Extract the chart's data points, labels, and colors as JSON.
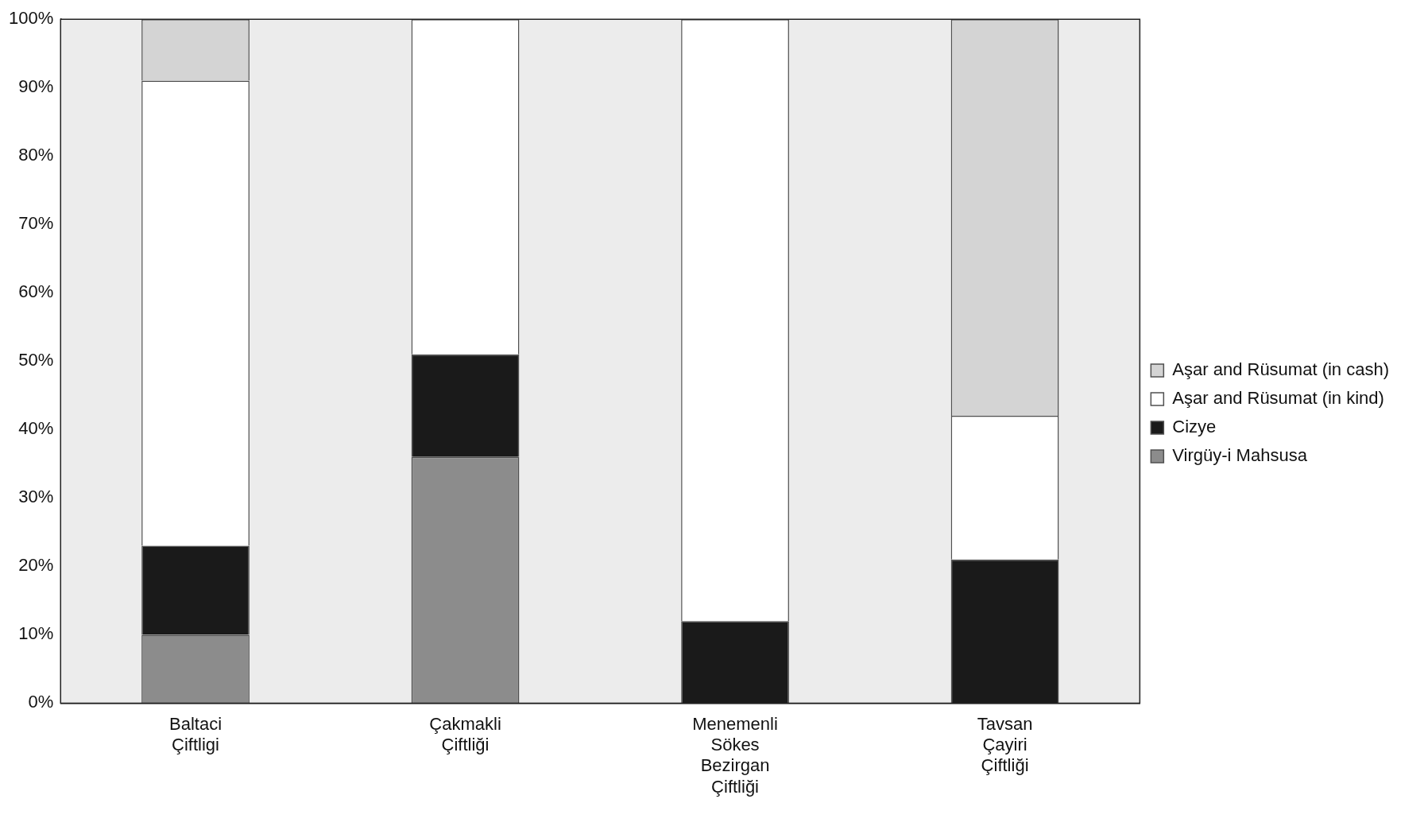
{
  "chart_data": {
    "type": "bar",
    "stacked": true,
    "categories": [
      "Baltaci Çiftligi",
      "Çakmakli Çiftliği",
      "Menemenli Sökes Bezirgan Çiftliği",
      "Tavsan Çayiri Çiftliği"
    ],
    "series": [
      {
        "name": "Virgüy-i Mahsusa",
        "color": "#8c8c8c",
        "values": [
          10,
          36,
          0,
          0
        ]
      },
      {
        "name": "Cizye",
        "color": "#1a1a1a",
        "values": [
          13,
          15,
          12,
          21
        ]
      },
      {
        "name": "Aşar and Rüsumat (in kind)",
        "color": "#ffffff",
        "values": [
          68,
          49,
          88,
          21
        ]
      },
      {
        "name": "Aşar and Rüsumat (in cash)",
        "color": "#d4d4d4",
        "values": [
          9,
          0,
          0,
          58
        ]
      }
    ],
    "ylim": [
      0,
      100
    ],
    "yticks": [
      {
        "value": 0,
        "label": "0%"
      },
      {
        "value": 10,
        "label": "10%"
      },
      {
        "value": 20,
        "label": "20%"
      },
      {
        "value": 30,
        "label": "30%"
      },
      {
        "value": 40,
        "label": "40%"
      },
      {
        "value": 50,
        "label": "50%"
      },
      {
        "value": 60,
        "label": "60%"
      },
      {
        "value": 70,
        "label": "70%"
      },
      {
        "value": 80,
        "label": "80%"
      },
      {
        "value": 90,
        "label": "90%"
      },
      {
        "value": 100,
        "label": "100%"
      }
    ],
    "grid": false,
    "legend": "right"
  }
}
